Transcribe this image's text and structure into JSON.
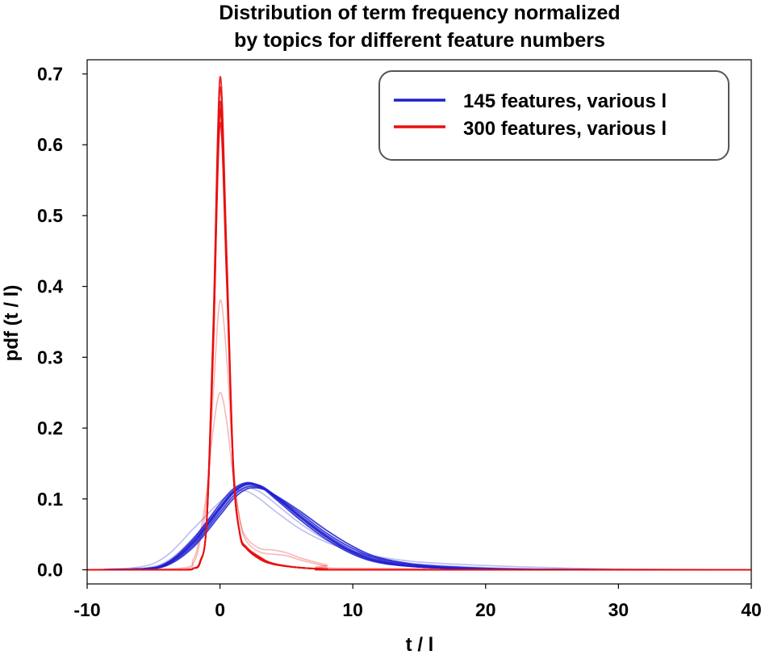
{
  "chart_data": {
    "type": "line",
    "title_lines": [
      "Distribution of term frequency normalized",
      "by topics for different feature numbers"
    ],
    "xlabel": "t / l",
    "ylabel": "pdf (t / l)",
    "xlim": [
      -10,
      40
    ],
    "ylim": [
      -0.02,
      0.72
    ],
    "x_ticks": [
      -10,
      0,
      10,
      20,
      30,
      40
    ],
    "x_tick_labels": [
      "-10",
      "0",
      "10",
      "20",
      "30",
      "40"
    ],
    "y_ticks": [
      0.0,
      0.1,
      0.2,
      0.3,
      0.4,
      0.5,
      0.6,
      0.7
    ],
    "y_tick_labels": [
      "0.0",
      "0.1",
      "0.2",
      "0.3",
      "0.4",
      "0.5",
      "0.6",
      "0.7"
    ],
    "grid": false,
    "legend": {
      "placement": "top-right",
      "entries": [
        {
          "label": "145 features, various l",
          "color": "#1f1fd0"
        },
        {
          "label": "300 features, various l",
          "color": "#e81010"
        }
      ]
    },
    "series": [
      {
        "group": "145 features, various l",
        "color": "#1f1fd0",
        "opacity": 0.85,
        "x": [
          -10,
          -6,
          -4,
          -2,
          0,
          1,
          2,
          3,
          4,
          6,
          8,
          10,
          12,
          15,
          20,
          25,
          30,
          40
        ],
        "y": [
          0,
          0.001,
          0.008,
          0.038,
          0.085,
          0.108,
          0.12,
          0.117,
          0.105,
          0.077,
          0.049,
          0.027,
          0.013,
          0.005,
          0.001,
          0.0003,
          0.0001,
          0
        ]
      },
      {
        "group": "145 features, various l",
        "color": "#1f1fd0",
        "opacity": 0.85,
        "x": [
          -10,
          -6,
          -4,
          -2,
          0,
          1,
          2,
          3,
          4,
          6,
          8,
          10,
          12,
          15,
          20,
          25,
          30,
          40
        ],
        "y": [
          0,
          0.001,
          0.009,
          0.041,
          0.089,
          0.111,
          0.122,
          0.118,
          0.105,
          0.074,
          0.046,
          0.024,
          0.011,
          0.004,
          0.001,
          0.0002,
          0.0001,
          0
        ]
      },
      {
        "group": "145 features, various l",
        "color": "#1f1fd0",
        "opacity": 0.85,
        "x": [
          -10,
          -6,
          -4,
          -2,
          0,
          1,
          2,
          3,
          4,
          6,
          8,
          10,
          12,
          15,
          20,
          25,
          30,
          40
        ],
        "y": [
          0,
          0.001,
          0.007,
          0.035,
          0.081,
          0.104,
          0.117,
          0.116,
          0.106,
          0.08,
          0.052,
          0.03,
          0.015,
          0.006,
          0.001,
          0.0003,
          0.0001,
          0
        ]
      },
      {
        "group": "145 features, various l",
        "color": "#1f1fd0",
        "opacity": 0.85,
        "x": [
          -10,
          -6,
          -4,
          -2,
          0,
          1,
          2,
          3,
          4,
          6,
          8,
          10,
          12,
          15,
          20,
          25,
          30,
          40
        ],
        "y": [
          0,
          0.001,
          0.01,
          0.044,
          0.093,
          0.114,
          0.123,
          0.118,
          0.103,
          0.071,
          0.043,
          0.022,
          0.01,
          0.004,
          0.001,
          0.0002,
          0.0001,
          0
        ]
      },
      {
        "group": "145 features, various l",
        "color": "#1f1fd0",
        "opacity": 0.85,
        "x": [
          -10,
          -6,
          -4,
          -2,
          0,
          1,
          2,
          3,
          4,
          6,
          8,
          10,
          12,
          15,
          20,
          25,
          30,
          40
        ],
        "y": [
          0,
          0.001,
          0.006,
          0.032,
          0.077,
          0.1,
          0.114,
          0.115,
          0.107,
          0.083,
          0.056,
          0.033,
          0.017,
          0.007,
          0.002,
          0.0004,
          0.0001,
          0
        ]
      },
      {
        "group": "145 features, various l",
        "color": "#1f1fd0",
        "opacity": 0.85,
        "x": [
          -10,
          -6,
          -4,
          -2,
          0,
          1,
          2,
          3,
          4,
          6,
          8,
          10,
          12,
          15,
          20,
          25,
          30,
          40
        ],
        "y": [
          0,
          0.001,
          0.008,
          0.039,
          0.087,
          0.11,
          0.121,
          0.119,
          0.107,
          0.076,
          0.047,
          0.025,
          0.012,
          0.004,
          0.001,
          0.0002,
          0.0001,
          0
        ]
      },
      {
        "group": "145 features, various l",
        "color": "#1f1fd0",
        "opacity": 0.3,
        "x": [
          -10,
          -6,
          -4,
          -2,
          0,
          1,
          2,
          3,
          4,
          6,
          8,
          10,
          12,
          15,
          20,
          25,
          30,
          40
        ],
        "y": [
          0,
          0.004,
          0.02,
          0.058,
          0.096,
          0.11,
          0.111,
          0.1,
          0.085,
          0.058,
          0.039,
          0.026,
          0.018,
          0.011,
          0.006,
          0.003,
          0.001,
          0
        ]
      },
      {
        "group": "145 features, various l",
        "color": "#1f1fd0",
        "opacity": 0.3,
        "x": [
          -10,
          -6,
          -4,
          -2,
          0,
          1,
          2,
          3,
          4,
          6,
          8,
          10,
          12,
          15,
          20,
          25,
          30,
          40
        ],
        "y": [
          0,
          0.002,
          0.012,
          0.045,
          0.088,
          0.108,
          0.116,
          0.11,
          0.096,
          0.066,
          0.042,
          0.026,
          0.016,
          0.008,
          0.003,
          0.001,
          0.0004,
          0
        ]
      },
      {
        "group": "300 features, various l",
        "color": "#e81010",
        "opacity": 0.9,
        "x": [
          -10,
          -3,
          -2,
          -1.5,
          -1,
          -0.5,
          0,
          0.5,
          1,
          1.5,
          2,
          3,
          4,
          6,
          8,
          10,
          40
        ],
        "y": [
          0,
          0,
          0.002,
          0.01,
          0.07,
          0.35,
          0.695,
          0.45,
          0.15,
          0.05,
          0.03,
          0.015,
          0.008,
          0.003,
          0.001,
          0,
          0
        ]
      },
      {
        "group": "300 features, various l",
        "color": "#e81010",
        "opacity": 0.9,
        "x": [
          -10,
          -3,
          -2,
          -1.5,
          -1,
          -0.5,
          0,
          0.5,
          1,
          1.5,
          2,
          3,
          4,
          6,
          8,
          10,
          40
        ],
        "y": [
          0,
          0,
          0.002,
          0.01,
          0.068,
          0.33,
          0.66,
          0.43,
          0.145,
          0.05,
          0.03,
          0.016,
          0.008,
          0.003,
          0.001,
          0,
          0
        ]
      },
      {
        "group": "300 features, various l",
        "color": "#e81010",
        "opacity": 0.9,
        "x": [
          -10,
          -3,
          -2,
          -1.5,
          -1,
          -0.5,
          0,
          0.5,
          1,
          1.5,
          2,
          3,
          4,
          6,
          8,
          10,
          40
        ],
        "y": [
          0,
          0,
          0.002,
          0.011,
          0.066,
          0.32,
          0.645,
          0.42,
          0.14,
          0.05,
          0.031,
          0.017,
          0.009,
          0.003,
          0.001,
          0,
          0
        ]
      },
      {
        "group": "300 features, various l",
        "color": "#e81010",
        "opacity": 0.9,
        "x": [
          -10,
          -3,
          -2,
          -1.5,
          -1,
          -0.5,
          0,
          0.5,
          1,
          1.5,
          2,
          3,
          4,
          6,
          8,
          10,
          40
        ],
        "y": [
          0,
          0,
          0.002,
          0.012,
          0.065,
          0.315,
          0.63,
          0.41,
          0.14,
          0.052,
          0.032,
          0.018,
          0.009,
          0.003,
          0.001,
          0,
          0
        ]
      },
      {
        "group": "300 features, various l",
        "color": "#e81010",
        "opacity": 0.9,
        "x": [
          -10,
          -3,
          -2,
          -1.5,
          -1,
          -0.5,
          0,
          0.5,
          1,
          1.5,
          2,
          3,
          4,
          6,
          8,
          10,
          40
        ],
        "y": [
          0,
          0,
          0.002,
          0.011,
          0.067,
          0.325,
          0.65,
          0.425,
          0.142,
          0.051,
          0.03,
          0.016,
          0.008,
          0.003,
          0.001,
          0,
          0
        ]
      },
      {
        "group": "300 features, various l",
        "color": "#e81010",
        "opacity": 0.9,
        "x": [
          -10,
          -3,
          -2,
          -1.5,
          -1,
          -0.5,
          0,
          0.5,
          1,
          1.5,
          2,
          3,
          4,
          6,
          8,
          10,
          40
        ],
        "y": [
          0,
          0,
          0.002,
          0.01,
          0.069,
          0.34,
          0.68,
          0.44,
          0.148,
          0.05,
          0.03,
          0.015,
          0.008,
          0.003,
          0.001,
          0,
          0
        ]
      },
      {
        "group": "300 features, various l",
        "color": "#e81010",
        "opacity": 0.3,
        "x": [
          -10,
          -3,
          -2,
          -1.5,
          -1,
          -0.5,
          0,
          0.5,
          1,
          1.5,
          2,
          3,
          4,
          5,
          6,
          8,
          10,
          40
        ],
        "y": [
          0,
          0.001,
          0.01,
          0.04,
          0.1,
          0.25,
          0.38,
          0.3,
          0.15,
          0.07,
          0.04,
          0.025,
          0.022,
          0.02,
          0.014,
          0.005,
          0.001,
          0
        ]
      },
      {
        "group": "300 features, various l",
        "color": "#e81010",
        "opacity": 0.3,
        "x": [
          -10,
          -3,
          -2,
          -1.5,
          -1,
          -0.5,
          0,
          0.5,
          1,
          1.5,
          2,
          3,
          4,
          5,
          6,
          8,
          10,
          40
        ],
        "y": [
          0,
          0.002,
          0.015,
          0.05,
          0.11,
          0.2,
          0.25,
          0.21,
          0.13,
          0.07,
          0.045,
          0.03,
          0.028,
          0.024,
          0.017,
          0.007,
          0.002,
          0
        ]
      }
    ]
  }
}
